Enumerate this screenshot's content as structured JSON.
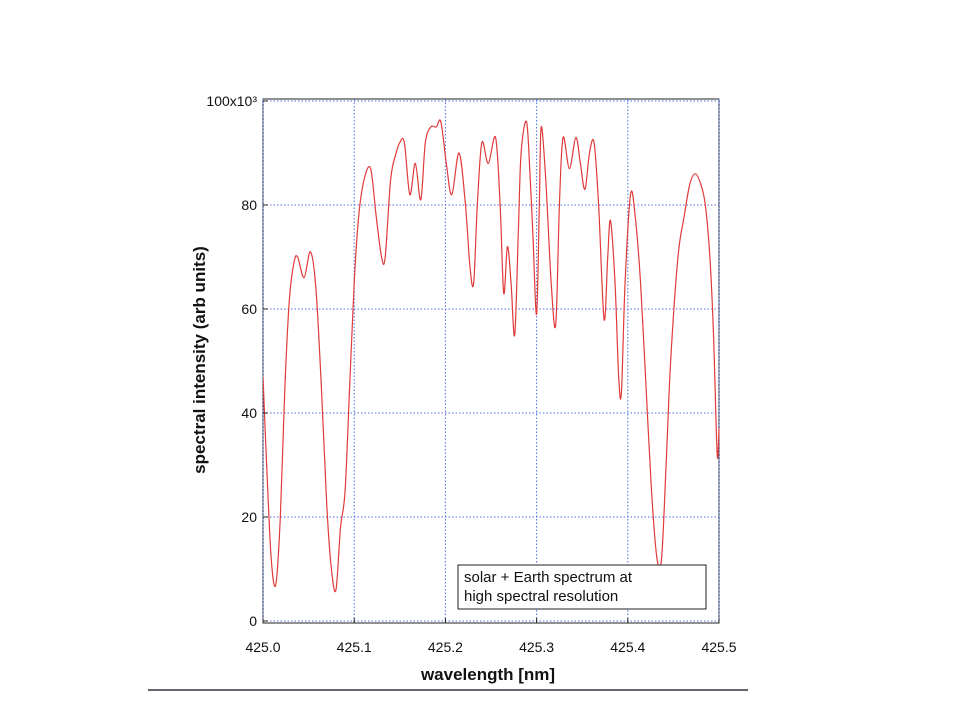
{
  "chart_data": {
    "type": "line",
    "xlabel": "wavelength [nm]",
    "ylabel": "spectral intensity (arb units)",
    "annotations": [
      "solar + Earth spectrum at",
      "high spectral resolution"
    ],
    "grid": true,
    "xlim": [
      425.0,
      425.5
    ],
    "xticks": [
      {
        "value": 425.0,
        "label": "425.0"
      },
      425.1,
      425.2,
      425.3,
      425.4,
      425.5
    ],
    "ylim": [
      0,
      100
    ],
    "yticks": [
      0,
      20,
      40,
      60,
      80,
      {
        "value": 100,
        "label": "100x10³"
      }
    ],
    "series": [
      {
        "color": "#e03a3a",
        "x": [
          425.0,
          425.004,
          425.009,
          425.014,
          425.019,
          425.024,
          425.029,
          425.034,
          425.038,
          425.045,
          425.052,
          425.058,
          425.064,
          425.07,
          425.075,
          425.08,
          425.085,
          425.09,
          425.095,
          425.1,
          425.105,
          425.111,
          425.118,
          425.124,
          425.13,
          425.134,
          425.14,
          425.146,
          425.15,
          425.155,
          425.161,
          425.167,
          425.173,
          425.178,
          425.184,
          425.19,
          425.195,
          425.201,
          425.207,
          425.215,
          425.222,
          425.227,
          425.231,
          425.235,
          425.24,
          425.247,
          425.255,
          425.26,
          425.264,
          425.268,
          425.272,
          425.276,
          425.28,
          425.283,
          425.289,
          425.293,
          425.296,
          425.3,
          425.303,
          425.305,
          425.31,
          425.316,
          425.321,
          425.325,
          425.329,
          425.336,
          425.343,
          425.348,
          425.353,
          425.358,
          425.363,
          425.368,
          425.374,
          425.378,
          425.381,
          425.386,
          425.39,
          425.393,
          425.397,
          425.403,
          425.408,
          425.414,
          425.42,
          425.426,
          425.432,
          425.437,
          425.442,
          425.447,
          425.455,
          425.462,
          425.468,
          425.474,
          425.48,
          425.485,
          425.49,
          425.494,
          425.498,
          425.5
        ],
        "values": [
          47,
          30,
          12,
          7,
          20,
          45,
          62,
          69,
          70,
          66,
          71,
          64,
          45,
          22,
          10,
          6,
          18,
          25,
          45,
          65,
          78,
          85,
          87,
          78,
          70,
          70,
          85,
          90,
          92,
          92,
          82,
          88,
          81,
          92,
          95,
          95,
          96,
          88,
          82,
          90,
          80,
          68,
          65,
          80,
          92,
          88,
          93,
          80,
          63,
          72,
          65,
          55,
          75,
          90,
          96,
          85,
          74,
          59,
          80,
          95,
          85,
          65,
          57,
          80,
          93,
          87,
          93,
          88,
          83,
          90,
          92,
          80,
          58,
          70,
          77,
          65,
          47,
          44,
          65,
          82,
          78,
          65,
          45,
          25,
          12,
          12,
          30,
          50,
          70,
          78,
          84,
          86,
          84,
          80,
          70,
          55,
          32,
          37
        ]
      }
    ]
  }
}
